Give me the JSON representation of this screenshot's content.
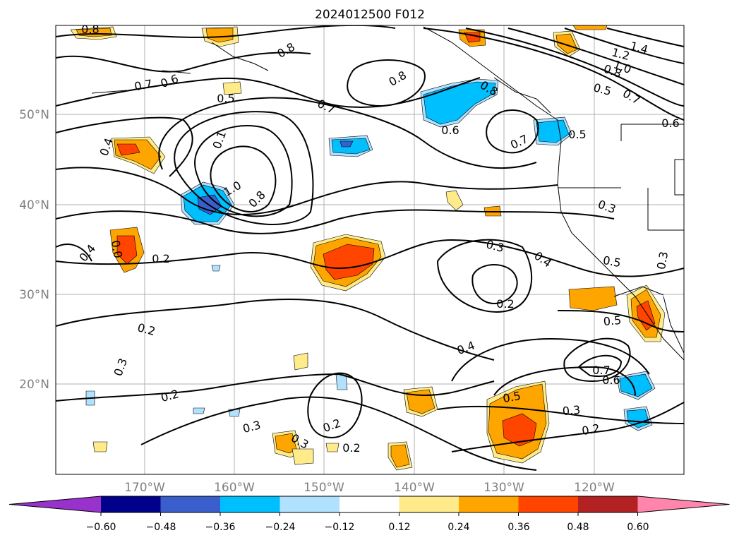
{
  "figure": {
    "title": "2024012500 F012",
    "lat_labels": [
      "50°N",
      "40°N",
      "30°N",
      "20°N"
    ],
    "lon_labels": [
      "170°W",
      "160°W",
      "150°W",
      "140°W",
      "130°W",
      "120°W"
    ]
  },
  "contour_labels": [
    "0.8",
    "0.8",
    "0.7",
    "0.6",
    "0.5",
    "0.8",
    "0.7",
    "0.6",
    "0.8",
    "1.4",
    "1.2",
    "1.0",
    "0.8",
    "0.5",
    "0.7",
    "0.6",
    "0.7",
    "0.5",
    "0.1",
    "0.4",
    "1.0",
    "0.8",
    "0.3",
    "0.4",
    "0.0",
    "0.2",
    "0.3",
    "0.4",
    "0.5",
    "0.3",
    "0.2",
    "0.2",
    "0.5",
    "0.4",
    "0.3",
    "0.7",
    "0.6",
    "0.2",
    "0.5",
    "0.3",
    "0.2",
    "0.3",
    "0.2",
    "0.3",
    "0.2"
  ],
  "colorbar": {
    "ticks": [
      "−0.60",
      "−0.48",
      "−0.36",
      "−0.24",
      "−0.12",
      "0.12",
      "0.24",
      "0.36",
      "0.48",
      "0.60"
    ],
    "colors": [
      "#9932cc",
      "#00008b",
      "#3a5fcd",
      "#00bfff",
      "#b0e2ff",
      "#ffffff",
      "#ffeb8a",
      "#ffa500",
      "#ff4500",
      "#b22222",
      "#ff85ad"
    ]
  }
}
